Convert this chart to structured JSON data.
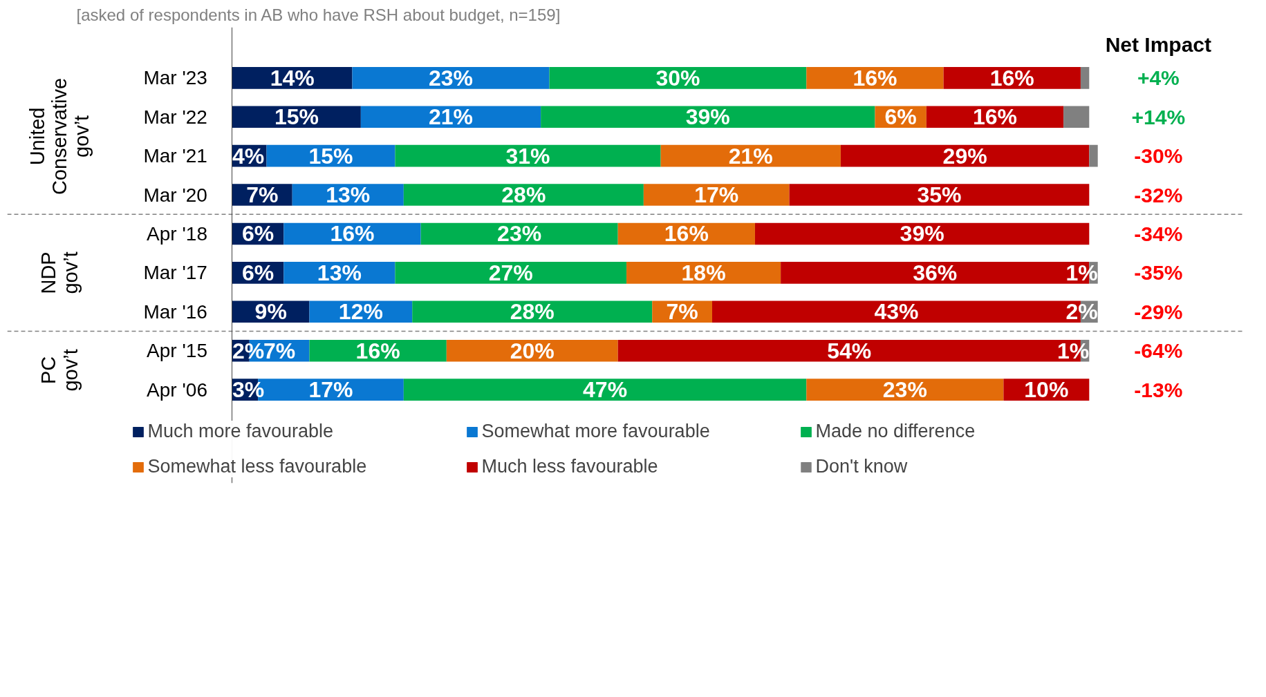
{
  "chart_data": {
    "type": "bar",
    "orientation": "horizontal",
    "stacked": true,
    "subtitle": "[asked of respondents in AB who have RSH about budget, n=159]",
    "categories": [
      "Mar '23",
      "Mar '22",
      "Mar '21",
      "Mar '20",
      "Apr '18",
      "Mar '17",
      "Mar '16",
      "Apr '15",
      "Apr '06"
    ],
    "xlim": [
      0,
      101
    ],
    "tick_labels": "y",
    "grid": false,
    "legend": "bottom",
    "series": [
      {
        "name": "Much more favourable",
        "color": "#002060",
        "values": [
          14,
          15,
          4,
          7,
          6,
          6,
          9,
          2,
          3
        ],
        "value_labels": [
          "14%",
          "15%",
          "4%",
          "7%",
          "6%",
          "6%",
          "9%",
          "2%",
          "3%"
        ]
      },
      {
        "name": "Somewhat more favourable",
        "color": "#0a78d2",
        "values": [
          23,
          21,
          15,
          13,
          16,
          13,
          12,
          7,
          17
        ],
        "value_labels": [
          "23%",
          "21%",
          "15%",
          "13%",
          "16%",
          "13%",
          "12%",
          "7%",
          "17%"
        ]
      },
      {
        "name": "Made no difference",
        "color": "#00b050",
        "values": [
          30,
          39,
          31,
          28,
          23,
          27,
          28,
          16,
          47
        ],
        "value_labels": [
          "30%",
          "39%",
          "31%",
          "28%",
          "23%",
          "27%",
          "28%",
          "16%",
          "47%"
        ]
      },
      {
        "name": "Somewhat less favourable",
        "color": "#e36c0a",
        "values": [
          16,
          6,
          21,
          17,
          16,
          18,
          7,
          20,
          23
        ],
        "value_labels": [
          "16%",
          "6%",
          "21%",
          "17%",
          "16%",
          "18%",
          "7%",
          "20%",
          "23%"
        ]
      },
      {
        "name": "Much less favourable",
        "color": "#c00000",
        "values": [
          16,
          16,
          29,
          35,
          39,
          36,
          43,
          54,
          10
        ],
        "value_labels": [
          "16%",
          "16%",
          "29%",
          "35%",
          "39%",
          "36%",
          "43%",
          "54%",
          "10%"
        ]
      },
      {
        "name": "Don't know",
        "color": "#808080",
        "values": [
          1,
          3,
          1,
          null,
          null,
          1,
          2,
          1,
          null
        ],
        "value_labels": [
          null,
          null,
          null,
          null,
          null,
          "1%",
          "2%",
          "1%",
          null
        ]
      }
    ],
    "annotations": [
      "Net Impact",
      "United\nConservative\ngov’t",
      "NDP\ngov’t",
      "PC\ngov’t",
      "+4%",
      "+14%",
      "-30%",
      "-32%",
      "-34%",
      "-35%",
      "-29%",
      "-64%",
      "-13%"
    ]
  }
}
